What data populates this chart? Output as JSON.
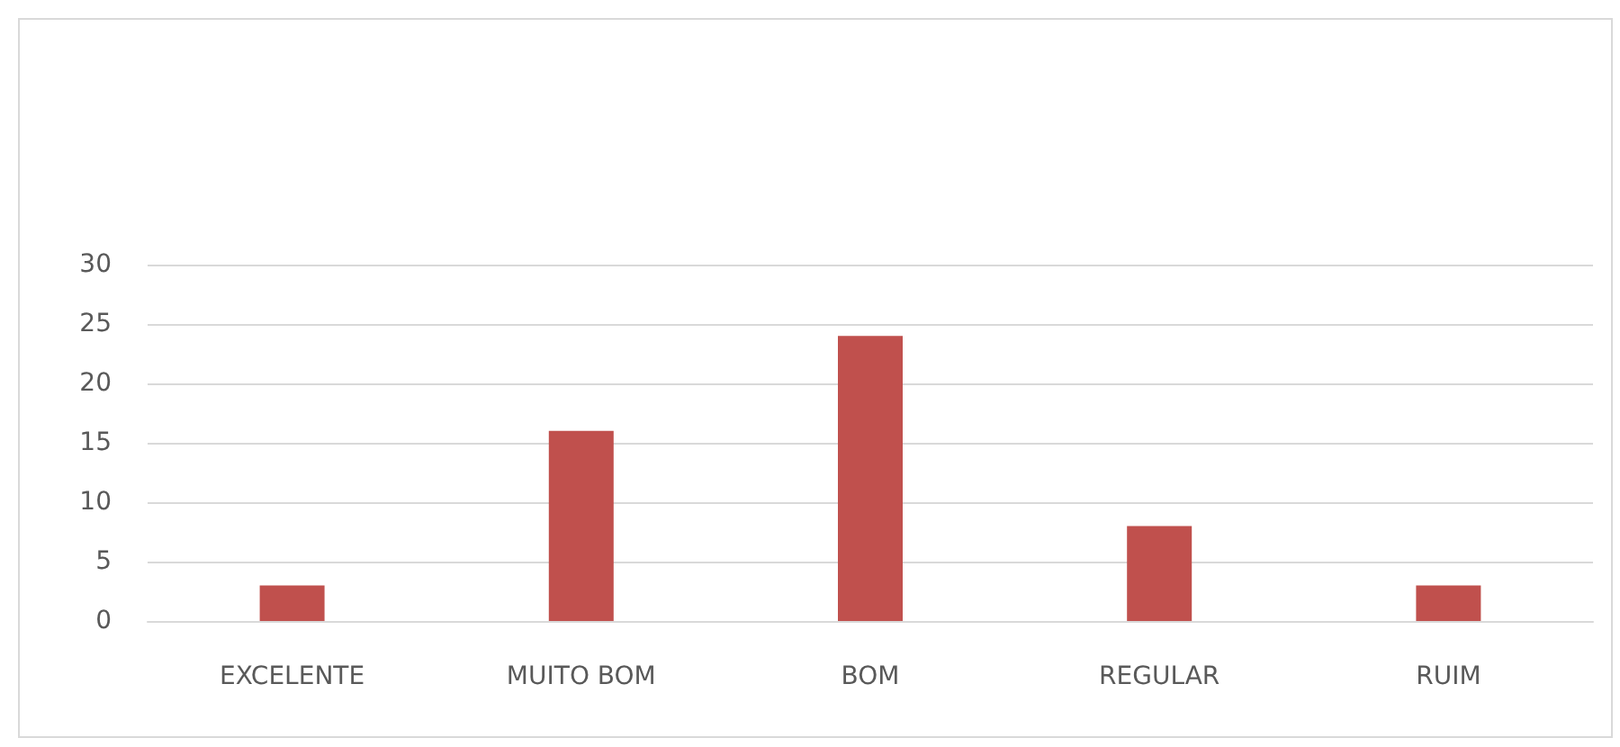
{
  "chart_data": {
    "type": "bar",
    "categories": [
      "EXCELENTE",
      "MUITO BOM",
      "BOM",
      "REGULAR",
      "RUIM"
    ],
    "values": [
      3,
      16,
      24,
      8,
      3
    ],
    "color": "#c0504d",
    "ylim": [
      0,
      30
    ],
    "yticks": [
      0,
      5,
      10,
      15,
      20,
      25,
      30
    ],
    "grid": "y"
  }
}
